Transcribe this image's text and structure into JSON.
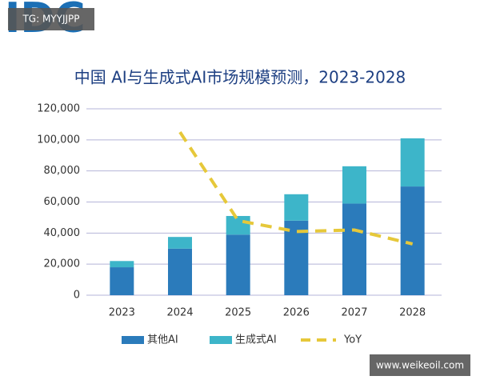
{
  "logo": "IDC",
  "watermarks": [
    "TG: MYYJJPP",
    "www.weikeoil.com"
  ],
  "chart_data": {
    "type": "stacked-bar-line",
    "title": "中国 AI与生成式AI市场规模预测，2023-2028",
    "categories": [
      "2023",
      "2024",
      "2025",
      "2026",
      "2027",
      "2028"
    ],
    "series": [
      {
        "name": "其他AI",
        "color": "#2b7bbb",
        "values": [
          18000,
          30000,
          39000,
          48000,
          59000,
          70000
        ]
      },
      {
        "name": "生成式AI",
        "color": "#3db5c9",
        "values": [
          4000,
          7500,
          12000,
          17000,
          24000,
          31000
        ]
      },
      {
        "name": "YoY",
        "color": "#e6c83a",
        "type": "line",
        "values": [
          null,
          105000,
          48000,
          41000,
          42000,
          33000
        ]
      }
    ],
    "ylim": [
      0,
      120000
    ],
    "yticks": [
      0,
      {
        "value": 20000,
        "label": "20,000"
      },
      {
        "value": 40000,
        "label": "40,000"
      },
      {
        "value": 60000,
        "label": "60,000"
      },
      {
        "value": 80000,
        "label": "80,000"
      },
      {
        "value": 100000,
        "label": "100,000"
      },
      {
        "value": 120000,
        "label": "120,000"
      }
    ],
    "grid": true
  }
}
